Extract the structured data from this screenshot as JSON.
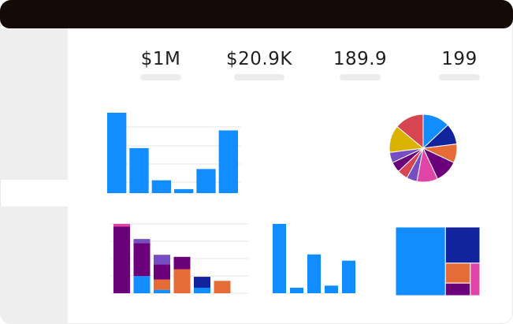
{
  "kpis": [
    {
      "value": "$1M"
    },
    {
      "value": "$20.9K"
    },
    {
      "value": "189.9"
    },
    {
      "value": "199"
    }
  ],
  "colors": {
    "topbar": "#150b06",
    "sidebar": "#eeeeee",
    "blue": "#118dff",
    "navy": "#12239e",
    "orange": "#e66c37",
    "purple": "#6b007b",
    "pink": "#e044a7",
    "violet": "#744ec2",
    "yellow": "#d9b300",
    "red": "#d64550",
    "green": "#197278",
    "grid": "#e6e6e6"
  },
  "chart_data": [
    {
      "type": "bar",
      "values": [
        100,
        56,
        16,
        5,
        30,
        78
      ],
      "ylim": [
        0,
        100
      ],
      "grid": true
    },
    {
      "type": "pie",
      "values": [
        13,
        10,
        9,
        11,
        10,
        5,
        5,
        5,
        5,
        13,
        14
      ],
      "colors": [
        "#118dff",
        "#12239e",
        "#e66c37",
        "#6b007b",
        "#e044a7",
        "#744ec2",
        "#d64550",
        "#6b007b",
        "#744ec2",
        "#d9b300",
        "#d64550"
      ]
    },
    {
      "type": "bar",
      "stacked": true,
      "series": [
        {
          "color": "#118dff",
          "values": [
            0,
            25,
            5,
            0,
            8,
            0
          ]
        },
        {
          "color": "#e66c37",
          "values": [
            0,
            0,
            15,
            35,
            0,
            18
          ]
        },
        {
          "color": "#6b007b",
          "values": [
            97,
            48,
            22,
            18,
            0,
            0
          ]
        },
        {
          "color": "#744ec2",
          "values": [
            0,
            6,
            14,
            0,
            0,
            0
          ]
        },
        {
          "color": "#12239e",
          "values": [
            0,
            0,
            0,
            0,
            16,
            0
          ]
        },
        {
          "color": "#e044a7",
          "values": [
            4,
            0,
            0,
            0,
            0,
            0
          ]
        }
      ],
      "ylim": [
        0,
        101
      ],
      "grid": true
    },
    {
      "type": "bar",
      "values": [
        100,
        8,
        56,
        11,
        47
      ],
      "ylim": [
        0,
        100
      ]
    },
    {
      "type": "treemap",
      "values": [
        55,
        20,
        8,
        5,
        5
      ],
      "colors": [
        "#118dff",
        "#12239e",
        "#e66c37",
        "#6b007b",
        "#e044a7"
      ]
    }
  ]
}
